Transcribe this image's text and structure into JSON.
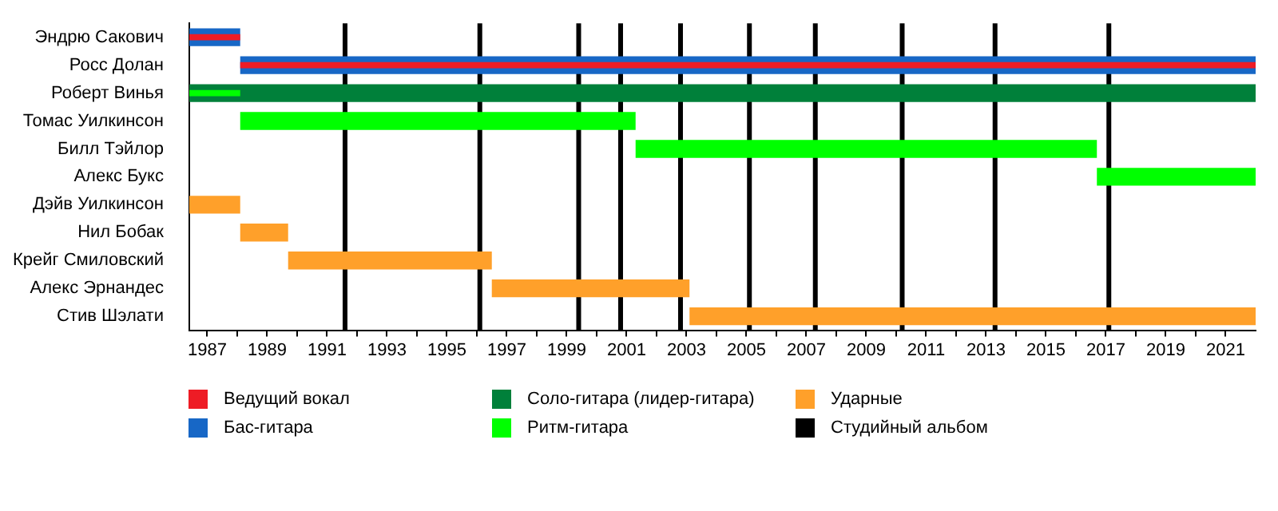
{
  "chart_data": {
    "type": "bar",
    "orientation": "horizontal",
    "legend": "bottom",
    "grid": false,
    "categories": [
      "Эндрю Сакович",
      "Росс Долан",
      "Роберт Винья",
      "Томас Уилкинсон",
      "Билл Тэйлор",
      "Алекс Букс",
      "Дэйв Уилкинсон",
      "Нил Бобак",
      "Крейг Смиловский",
      "Алекс Эрнандес",
      "Стив Шэлати"
    ],
    "xlim": [
      1986.4,
      2022
    ],
    "xticks": [
      1987,
      {
        "value": 1988,
        "label": null
      },
      1989,
      {
        "value": 1990,
        "label": null
      },
      1991,
      {
        "value": 1992,
        "label": null
      },
      1993,
      {
        "value": 1994,
        "label": null
      },
      1995,
      {
        "value": 1996,
        "label": null
      },
      1997,
      {
        "value": 1998,
        "label": null
      },
      1999,
      {
        "value": 2000,
        "label": null
      },
      2001,
      {
        "value": 2002,
        "label": null
      },
      2003,
      {
        "value": 2004,
        "label": null
      },
      2005,
      {
        "value": 2006,
        "label": null
      },
      2007,
      {
        "value": 2008,
        "label": null
      },
      2009,
      {
        "value": 2010,
        "label": null
      },
      2011,
      {
        "value": 2012,
        "label": null
      },
      2013,
      {
        "value": 2014,
        "label": null
      },
      2015,
      {
        "value": 2016,
        "label": null
      },
      2017,
      {
        "value": 2018,
        "label": null
      },
      2019,
      {
        "value": 2020,
        "label": null
      },
      2021
    ],
    "series": [
      {
        "name": "Ведущий вокал",
        "color": "#ee1c25",
        "base": [
          1986.4,
          1988.1,
          null,
          null,
          null,
          null,
          null,
          null,
          null,
          null,
          null
        ],
        "values": [
          1.7,
          33.9,
          null,
          null,
          null,
          null,
          null,
          null,
          null,
          null,
          null
        ]
      },
      {
        "name": "Бас-гитара",
        "color": "#1767c6",
        "base": [
          1986.4,
          1988.1,
          null,
          null,
          null,
          null,
          null,
          null,
          null,
          null,
          null
        ],
        "values": [
          1.7,
          33.9,
          null,
          null,
          null,
          null,
          null,
          null,
          null,
          null,
          null
        ]
      },
      {
        "name": "Соло-гитара (лидер-гитара)",
        "color": "#00803a",
        "base": [
          null,
          null,
          1986.4,
          null,
          null,
          null,
          null,
          null,
          null,
          null,
          null
        ],
        "values": [
          null,
          null,
          35.6,
          null,
          null,
          null,
          null,
          null,
          null,
          null,
          null
        ]
      },
      {
        "name": "Ритм-гитара",
        "color": "#00ff00",
        "base": [
          null,
          null,
          1986.4,
          1988.1,
          2001.3,
          2016.7,
          null,
          null,
          null,
          null,
          null
        ],
        "values": [
          null,
          null,
          1.7,
          13.2,
          15.4,
          5.3,
          null,
          null,
          null,
          null,
          null
        ]
      },
      {
        "name": "Ударные",
        "color": "#ffa02a",
        "base": [
          null,
          null,
          null,
          null,
          null,
          null,
          1986.4,
          1988.1,
          1989.7,
          1996.5,
          2003.1
        ],
        "values": [
          null,
          null,
          null,
          null,
          null,
          null,
          1.7,
          1.6,
          6.8,
          6.6,
          18.9
        ]
      }
    ],
    "ref_lines": [
      {
        "axis": "x",
        "value": 1991.6,
        "label": "Студийный альбом",
        "color": "#000000"
      },
      {
        "axis": "x",
        "value": 1996.1,
        "color": "#000000"
      },
      {
        "axis": "x",
        "value": 1999.4,
        "color": "#000000"
      },
      {
        "axis": "x",
        "value": 2000.8,
        "color": "#000000"
      },
      {
        "axis": "x",
        "value": 2002.8,
        "color": "#000000"
      },
      {
        "axis": "x",
        "value": 2005.1,
        "color": "#000000"
      },
      {
        "axis": "x",
        "value": 2007.3,
        "color": "#000000"
      },
      {
        "axis": "x",
        "value": 2010.2,
        "color": "#000000"
      },
      {
        "axis": "x",
        "value": 2013.3,
        "color": "#000000"
      },
      {
        "axis": "x",
        "value": 2017.1,
        "color": "#000000"
      }
    ]
  }
}
